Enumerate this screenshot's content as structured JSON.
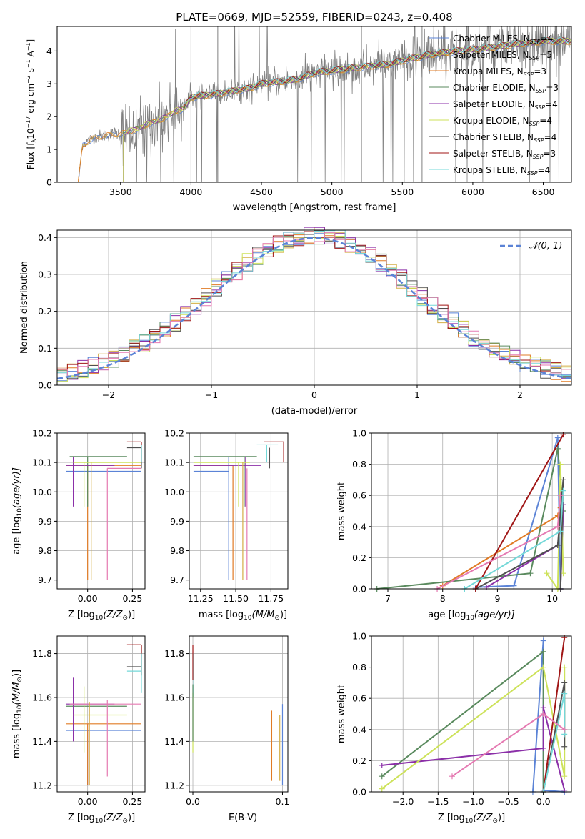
{
  "colors": {
    "Chabrier MILES": "#5b83d6",
    "Salpeter MILES": "#d4ad45",
    "Kroupa MILES": "#e07b25",
    "Chabrier ELODIE": "#5a8a5e",
    "Salpeter ELODIE": "#8b2fa8",
    "Kroupa ELODIE": "#cde25a",
    "Chabrier STELIB": "#505050",
    "Salpeter STELIB": "#a01616",
    "Kroupa STELIB": "#74d8d8",
    "gaussian": "#5b83d6",
    "spectrum": "#808080",
    "pink": "#e57ab2"
  },
  "chart_data": [
    {
      "id": "spectrum",
      "type": "line",
      "title": "PLATE=0669, MJD=52559, FIBERID=0243, z=0.408",
      "xlabel": "wavelength [Angstrom, rest frame]",
      "ylabel_main": "Flux [f",
      "ylabel_sub": "λ",
      "ylabel_rest": "10",
      "ylabel_sup": "−17",
      "ylabel_tail": " erg cm",
      "ylabel_sup2": "−2",
      "ylabel_tail2": " s",
      "ylabel_sup3": "−1",
      "ylabel_tail3": " A",
      "ylabel_sup4": "−1",
      "ylabel_end": "]",
      "xlim": [
        3050,
        6700
      ],
      "ylim": [
        0,
        4.75
      ],
      "xticks": [
        3500,
        4000,
        4500,
        5000,
        5500,
        6000,
        6500
      ],
      "yticks": [
        0,
        1,
        2,
        3,
        4
      ],
      "legend_location": "right",
      "legend": [
        {
          "pre": "Chabrier MILES, N",
          "sub": "SSP",
          "post": "=4"
        },
        {
          "pre": "Salpeter MILES, N",
          "sub": "SSP",
          "post": "=5"
        },
        {
          "pre": "Kroupa MILES, N",
          "sub": "SSP",
          "post": "=3"
        },
        {
          "pre": "Chabrier ELODIE, N",
          "sub": "SSP",
          "post": "=3"
        },
        {
          "pre": "Salpeter ELODIE, N",
          "sub": "SSP",
          "post": "=4"
        },
        {
          "pre": "Kroupa ELODIE, N",
          "sub": "SSP",
          "post": "=4"
        },
        {
          "pre": "Chabrier STELIB, N",
          "sub": "SSP",
          "post": "=4"
        },
        {
          "pre": "Salpeter STELIB, N",
          "sub": "SSP",
          "post": "=3"
        },
        {
          "pre": "Kroupa STELIB, N",
          "sub": "SSP",
          "post": "=4"
        }
      ],
      "model_continuum": {
        "x": [
          3200,
          3230,
          3300,
          3400,
          3500,
          3600,
          3700,
          3800,
          3900,
          3950,
          4000,
          4100,
          4200,
          4300,
          4400,
          4500,
          4600,
          4700,
          4800,
          4850,
          4900,
          5000,
          5100,
          5200,
          5300,
          5400,
          5500,
          5600,
          5700,
          5800,
          5900,
          6000,
          6100,
          6200,
          6300,
          6400,
          6500,
          6600
        ],
        "y": [
          0.0,
          1.15,
          1.35,
          1.45,
          1.5,
          1.6,
          1.8,
          1.95,
          2.2,
          2.25,
          2.6,
          2.65,
          2.7,
          2.78,
          2.85,
          3.0,
          3.05,
          3.1,
          3.2,
          3.3,
          3.35,
          3.4,
          3.45,
          3.5,
          3.55,
          3.6,
          3.7,
          3.8,
          3.9,
          3.95,
          4.0,
          4.05,
          4.1,
          4.15,
          4.2,
          4.25,
          4.3,
          4.3
        ]
      },
      "model_start": [
        3200,
        3200,
        3200,
        3520,
        3520,
        3520,
        3950,
        3950,
        3950
      ]
    },
    {
      "id": "residuals",
      "type": "histogram",
      "xlabel": "(data-model)/error",
      "ylabel": "Normed distribution",
      "xlim": [
        -2.5,
        2.5
      ],
      "ylim": [
        0,
        0.42
      ],
      "xticks": [
        -2,
        -1,
        0,
        1,
        2
      ],
      "yticks": [
        0.0,
        0.1,
        0.2,
        0.3,
        0.4
      ],
      "legend_location": "upper right",
      "legend_label": "𝒩(0, 1)",
      "bin_width": 0.1
    },
    {
      "id": "age-vs-Z",
      "type": "errorbar",
      "xlabel_main": "Z [log",
      "xlabel_sub": "10",
      "xlabel_rest": "(Z/Z",
      "xlabel_sub2": "⊙",
      "xlabel_end": ")]",
      "ylabel_main": "age  [log",
      "ylabel_sub": "10",
      "ylabel_rest": "(age/yr)]",
      "xlim": [
        -0.17,
        0.32
      ],
      "ylim": [
        9.67,
        10.2
      ],
      "xticks": [
        -0.25,
        0.0,
        0.25
      ],
      "xtick_labels": [
        "",
        "0.00",
        "0.25"
      ],
      "yticks": [
        9.7,
        9.8,
        9.9,
        10.0,
        10.1,
        10.2
      ],
      "points": [
        {
          "model": "Chabrier MILES",
          "x": 0.1,
          "xlo": -0.12,
          "xhi": 0.3,
          "y": 10.07,
          "ylo": 10.07,
          "yhi": 10.07
        },
        {
          "model": "Kroupa MILES",
          "x": 0.0,
          "xlo": -0.12,
          "xhi": 0.3,
          "y": 10.09,
          "ylo": 9.7,
          "yhi": 10.09
        },
        {
          "model": "Chabrier ELODIE",
          "x": 0.0,
          "xlo": -0.1,
          "xhi": 0.22,
          "y": 10.12,
          "ylo": 9.95,
          "yhi": 10.12
        },
        {
          "model": "Salpeter ELODIE",
          "x": -0.08,
          "xlo": -0.12,
          "xhi": 0.15,
          "y": 10.09,
          "ylo": 9.95,
          "yhi": 10.12
        },
        {
          "model": "Kroupa ELODIE",
          "x": -0.02,
          "xlo": -0.08,
          "xhi": 0.3,
          "y": 10.1,
          "ylo": 9.95,
          "yhi": 10.1
        },
        {
          "model": "Chabrier STELIB",
          "x": 0.3,
          "xlo": 0.22,
          "xhi": 0.3,
          "y": 10.15,
          "ylo": 10.08,
          "yhi": 10.15
        },
        {
          "model": "Salpeter STELIB",
          "x": 0.3,
          "xlo": 0.22,
          "xhi": 0.3,
          "y": 10.17,
          "ylo": 10.1,
          "yhi": 10.17
        },
        {
          "model": "Kroupa STELIB",
          "x": 0.3,
          "xlo": 0.3,
          "xhi": 0.3,
          "y": 10.13,
          "ylo": 10.1,
          "yhi": 10.16
        },
        {
          "model": "pink",
          "x": 0.11,
          "xlo": 0.11,
          "xhi": 0.3,
          "y": 10.08,
          "ylo": 9.7,
          "yhi": 10.08
        },
        {
          "model": "Salpeter MILES",
          "x": 0.02,
          "xlo": 0.02,
          "xhi": 0.02,
          "y": 10.1,
          "ylo": 9.7,
          "yhi": 10.1
        }
      ]
    },
    {
      "id": "age-vs-mass",
      "type": "errorbar",
      "xlabel_main": "mass [log",
      "xlabel_sub": "10",
      "xlabel_rest": "(M/M",
      "xlabel_sub2": "⊙",
      "xlabel_end": ")]",
      "xlim": [
        11.17,
        11.87
      ],
      "ylim": [
        9.67,
        10.2
      ],
      "xticks": [
        11.25,
        11.5,
        11.75
      ],
      "xtick_labels": [
        "11.25",
        "11.50",
        "11.75"
      ],
      "yticks": [
        9.7,
        9.8,
        9.9,
        10.0,
        10.1,
        10.2
      ],
      "points": [
        {
          "model": "Chabrier MILES",
          "x": 11.45,
          "xlo": 11.2,
          "xhi": 11.45,
          "y": 10.07,
          "ylo": 9.7,
          "yhi": 10.12
        },
        {
          "model": "Kroupa MILES",
          "x": 11.48,
          "xlo": 11.2,
          "xhi": 11.48,
          "y": 10.09,
          "ylo": 9.7,
          "yhi": 10.09
        },
        {
          "model": "Chabrier ELODIE",
          "x": 11.56,
          "xlo": 11.2,
          "xhi": 11.65,
          "y": 10.12,
          "ylo": 9.95,
          "yhi": 10.12
        },
        {
          "model": "Salpeter ELODIE",
          "x": 11.57,
          "xlo": 11.2,
          "xhi": 11.68,
          "y": 10.09,
          "ylo": 9.95,
          "yhi": 10.12
        },
        {
          "model": "Kroupa ELODIE",
          "x": 11.52,
          "xlo": 11.2,
          "xhi": 11.6,
          "y": 10.1,
          "ylo": 9.95,
          "yhi": 10.1
        },
        {
          "model": "Chabrier STELIB",
          "x": 11.74,
          "xlo": 11.74,
          "xhi": 11.74,
          "y": 10.15,
          "ylo": 10.08,
          "yhi": 10.15
        },
        {
          "model": "Salpeter STELIB",
          "x": 11.84,
          "xlo": 11.7,
          "xhi": 11.84,
          "y": 10.17,
          "ylo": 10.1,
          "yhi": 10.17
        },
        {
          "model": "Kroupa STELIB",
          "x": 11.72,
          "xlo": 11.65,
          "xhi": 11.8,
          "y": 10.16,
          "ylo": 10.1,
          "yhi": 10.16
        },
        {
          "model": "pink",
          "x": 11.58,
          "xlo": 11.58,
          "xhi": 11.58,
          "y": 10.08,
          "ylo": 9.7,
          "yhi": 10.08
        },
        {
          "model": "Salpeter MILES",
          "x": 11.55,
          "xlo": 11.55,
          "xhi": 11.55,
          "y": 10.1,
          "ylo": 9.7,
          "yhi": 10.1
        }
      ]
    },
    {
      "id": "weight-vs-age",
      "type": "line",
      "xlabel_main": "age  [log",
      "xlabel_sub": "10",
      "xlabel_rest": "(age/yr)]",
      "ylabel": "mass weight",
      "xlim": [
        6.7,
        10.35
      ],
      "ylim": [
        0,
        1.0
      ],
      "xticks": [
        7,
        8,
        9,
        10
      ],
      "yticks": [
        0.0,
        0.2,
        0.4,
        0.6,
        0.8,
        1.0
      ],
      "series": [
        {
          "model": "Chabrier MILES",
          "x": [
            8.6,
            9.3,
            10.1,
            10.15
          ],
          "y": [
            0.01,
            0.02,
            0.97,
            0.0
          ]
        },
        {
          "model": "Kroupa MILES",
          "x": [
            8.0,
            10.1,
            10.15
          ],
          "y": [
            0.02,
            0.47,
            0.52
          ]
        },
        {
          "model": "Chabrier ELODIE",
          "x": [
            6.8,
            9.6,
            10.1,
            10.2,
            10.15
          ],
          "y": [
            0.0,
            0.1,
            0.9,
            0.5,
            0.0
          ]
        },
        {
          "model": "Salpeter ELODIE",
          "x": [
            8.8,
            10.1,
            10.2,
            10.15
          ],
          "y": [
            0.01,
            0.28,
            0.54,
            0.0
          ]
        },
        {
          "model": "Kroupa ELODIE",
          "x": [
            9.9,
            10.1,
            10.15,
            10.2
          ],
          "y": [
            0.1,
            0.0,
            0.8,
            0.1
          ]
        },
        {
          "model": "Chabrier STELIB",
          "x": [
            8.6,
            10.1,
            10.2,
            10.15
          ],
          "y": [
            0.0,
            0.28,
            0.7,
            0.0
          ]
        },
        {
          "model": "Salpeter STELIB",
          "x": [
            8.6,
            10.2
          ],
          "y": [
            0.0,
            0.99
          ]
        },
        {
          "model": "Kroupa STELIB",
          "x": [
            8.4,
            10.15,
            10.2
          ],
          "y": [
            0.0,
            0.37,
            0.63
          ]
        },
        {
          "model": "pink",
          "x": [
            7.9,
            10.1,
            10.15
          ],
          "y": [
            0.0,
            0.4,
            0.6
          ]
        }
      ]
    },
    {
      "id": "mass-vs-Z",
      "type": "errorbar",
      "xlabel_main": "Z [log",
      "xlabel_sub": "10",
      "xlabel_rest": "(Z/Z",
      "xlabel_sub2": "⊙",
      "xlabel_end": ")]",
      "ylabel_main": "mass [log",
      "ylabel_sub": "10",
      "ylabel_rest": "(M/M",
      "ylabel_sub2": "⊙",
      "ylabel_end": ")]",
      "xlim": [
        -0.17,
        0.32
      ],
      "ylim": [
        11.17,
        11.88
      ],
      "xticks": [
        -0.25,
        0.0,
        0.25
      ],
      "xtick_labels": [
        "",
        "0.00",
        "0.25"
      ],
      "yticks": [
        11.2,
        11.4,
        11.6,
        11.8
      ],
      "points": [
        {
          "model": "Chabrier MILES",
          "x": 0.0,
          "xlo": -0.12,
          "xhi": 0.3,
          "y": 11.45,
          "ylo": 11.2,
          "yhi": 11.45
        },
        {
          "model": "Kroupa MILES",
          "x": 0.0,
          "xlo": -0.12,
          "xhi": 0.3,
          "y": 11.48,
          "ylo": 11.2,
          "yhi": 11.48
        },
        {
          "model": "Chabrier ELODIE",
          "x": -0.08,
          "xlo": -0.12,
          "xhi": 0.22,
          "y": 11.56,
          "ylo": 11.4,
          "yhi": 11.68
        },
        {
          "model": "Salpeter ELODIE",
          "x": -0.08,
          "xlo": -0.12,
          "xhi": 0.15,
          "y": 11.57,
          "ylo": 11.4,
          "yhi": 11.69
        },
        {
          "model": "Kroupa ELODIE",
          "x": -0.02,
          "xlo": -0.08,
          "xhi": 0.22,
          "y": 11.52,
          "ylo": 11.35,
          "yhi": 11.65
        },
        {
          "model": "Chabrier STELIB",
          "x": 0.3,
          "xlo": 0.22,
          "xhi": 0.3,
          "y": 11.74,
          "ylo": 11.7,
          "yhi": 11.84
        },
        {
          "model": "Salpeter STELIB",
          "x": 0.3,
          "xlo": 0.22,
          "xhi": 0.3,
          "y": 11.84,
          "ylo": 11.7,
          "yhi": 11.84
        },
        {
          "model": "Kroupa STELIB",
          "x": 0.3,
          "xlo": 0.22,
          "xhi": 0.3,
          "y": 11.72,
          "ylo": 11.62,
          "yhi": 11.8
        },
        {
          "model": "pink",
          "x": 0.11,
          "xlo": -0.1,
          "xhi": 0.3,
          "y": 11.57,
          "ylo": 11.24,
          "yhi": 11.59
        },
        {
          "model": "Salpeter MILES",
          "x": 0.01,
          "xlo": 0.01,
          "xhi": 0.01,
          "y": 11.5,
          "ylo": 11.2,
          "yhi": 11.58
        }
      ]
    },
    {
      "id": "mass-vs-ebv",
      "type": "errorbar",
      "xlabel": "E(B-V)",
      "xlim": [
        -0.004,
        0.106
      ],
      "ylim": [
        11.17,
        11.88
      ],
      "xticks": [
        0.0,
        0.1
      ],
      "xtick_labels": [
        "0.0",
        "0.1"
      ],
      "yticks": [
        11.2,
        11.4,
        11.6,
        11.8
      ],
      "points": [
        {
          "model": "Chabrier MILES",
          "x": 0.1,
          "xlo": 0.1,
          "xhi": 0.1,
          "y": 11.45,
          "ylo": 11.2,
          "yhi": 11.57
        },
        {
          "model": "Kroupa MILES",
          "x": 0.088,
          "xlo": 0.088,
          "xhi": 0.088,
          "y": 11.48,
          "ylo": 11.22,
          "yhi": 11.54
        },
        {
          "model": "Salpeter MILES",
          "x": 0.097,
          "xlo": 0.097,
          "xhi": 0.097,
          "y": 11.4,
          "ylo": 11.22,
          "yhi": 11.52
        },
        {
          "model": "Salpeter STELIB",
          "x": 0.0,
          "xlo": 0.0,
          "xhi": 0.0,
          "y": 11.75,
          "ylo": 11.68,
          "yhi": 11.84
        },
        {
          "model": "Kroupa STELIB",
          "x": 0.001,
          "xlo": 0.001,
          "xhi": 0.001,
          "y": 11.72,
          "ylo": 11.6,
          "yhi": 11.8
        },
        {
          "model": "Kroupa ELODIE",
          "x": 0.0,
          "xlo": 0.0,
          "xhi": 0.0,
          "y": 11.52,
          "ylo": 11.35,
          "yhi": 11.62
        },
        {
          "model": "Chabrier ELODIE",
          "x": 0.0,
          "xlo": 0.0,
          "xhi": 0.0,
          "y": 11.56,
          "ylo": 11.4,
          "yhi": 11.66
        }
      ]
    },
    {
      "id": "weight-vs-Z",
      "type": "line",
      "xlabel_main": "Z [log",
      "xlabel_sub": "10",
      "xlabel_rest": "(Z/Z",
      "xlabel_sub2": "⊙",
      "xlabel_end": ")]",
      "ylabel": "mass weight",
      "xlim": [
        -2.45,
        0.4
      ],
      "ylim": [
        0,
        1.0
      ],
      "xticks": [
        -2.0,
        -1.5,
        -1.0,
        -0.5,
        0.0
      ],
      "xtick_labels": [
        "−2.0",
        "−1.5",
        "−1.0",
        "−0.5",
        "0.0"
      ],
      "yticks": [
        0.0,
        0.2,
        0.4,
        0.6,
        0.8,
        1.0
      ],
      "series": [
        {
          "model": "Chabrier MILES",
          "x": [
            -0.15,
            0.0,
            0.0,
            0.3
          ],
          "y": [
            0.0,
            0.97,
            0.01,
            0.0
          ]
        },
        {
          "model": "Chabrier ELODIE",
          "x": [
            -2.3,
            0.0,
            0.0
          ],
          "y": [
            0.1,
            0.9,
            0.0
          ]
        },
        {
          "model": "Salpeter ELODIE",
          "x": [
            -2.3,
            0.0,
            0.0,
            0.3
          ],
          "y": [
            0.17,
            0.28,
            0.54,
            0.01
          ]
        },
        {
          "model": "Kroupa ELODIE",
          "x": [
            -2.3,
            0.0,
            0.3,
            0.3
          ],
          "y": [
            0.02,
            0.8,
            0.1,
            0.8
          ]
        },
        {
          "model": "Chabrier STELIB",
          "x": [
            0.0,
            0.3,
            0.3
          ],
          "y": [
            0.0,
            0.7,
            0.29
          ]
        },
        {
          "model": "Salpeter STELIB",
          "x": [
            0.0,
            0.3
          ],
          "y": [
            0.0,
            0.99
          ]
        },
        {
          "model": "Kroupa STELIB",
          "x": [
            0.3,
            0.3,
            0.0
          ],
          "y": [
            0.37,
            0.63,
            0.0
          ]
        },
        {
          "model": "pink",
          "x": [
            -1.3,
            0.0,
            0.3
          ],
          "y": [
            0.1,
            0.5,
            0.4
          ]
        }
      ]
    }
  ]
}
